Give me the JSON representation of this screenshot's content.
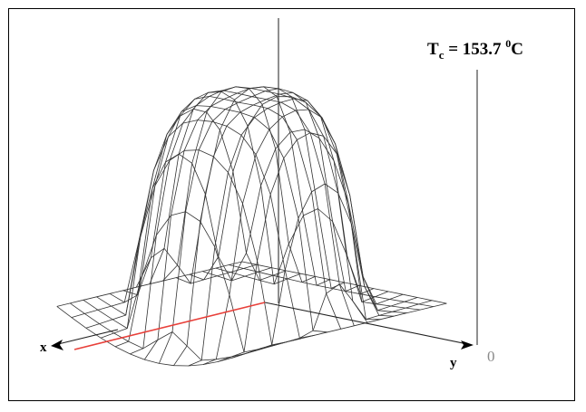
{
  "title": {
    "symbol": "T",
    "subscript": "c",
    "equals": " = 153.7 ",
    "superscript": "0",
    "unit": "C"
  },
  "axes": {
    "x_label": "x",
    "y_label": "y",
    "zero_label": "0"
  },
  "colors": {
    "frame": "#000000",
    "mesh": "#333333",
    "axis_red": "#e8403a",
    "scale_bar": "#555555",
    "zero_text": "#8a8a8a"
  }
}
